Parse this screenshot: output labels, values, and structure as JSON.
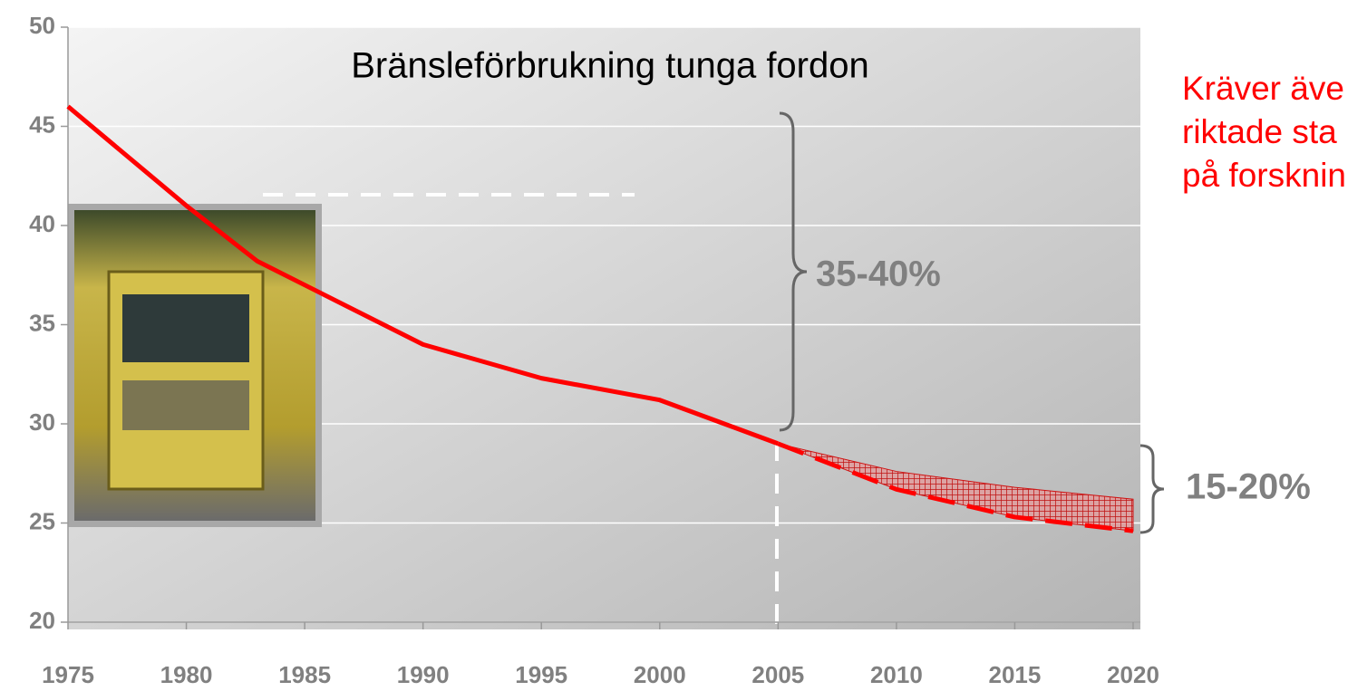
{
  "chart_data": {
    "type": "line",
    "title": "Bränsleförbrukning tunga fordon",
    "x": [
      1975,
      1980,
      1983,
      1985,
      1990,
      1995,
      2000,
      2005,
      2010,
      2015,
      2020
    ],
    "series": [
      {
        "color": "#ff0000",
        "style": "solid",
        "values": [
          46,
          41,
          38.2,
          37,
          34,
          32.3,
          31.2,
          29,
          null,
          null,
          null
        ]
      },
      {
        "color": "#ff0000",
        "style": "dashed",
        "values": [
          null,
          null,
          null,
          null,
          null,
          null,
          null,
          29,
          26.7,
          25.3,
          24.6
        ]
      },
      {
        "color": "#d00000",
        "style": "band",
        "values": [
          null,
          null,
          null,
          null,
          null,
          null,
          null,
          29,
          27.6,
          26.8,
          26.2
        ]
      }
    ],
    "xlim": [
      1975,
      2020
    ],
    "xticks": [
      1975,
      1980,
      1985,
      1990,
      1995,
      2000,
      2005,
      2010,
      2015,
      2020
    ],
    "ylim": [
      20,
      50
    ],
    "yticks": [
      20,
      25,
      30,
      35,
      40,
      45,
      50
    ],
    "grid": true,
    "annotations": [
      "35-40%",
      "15-20%"
    ],
    "note_lines": [
      "Kräver äve",
      "riktade sta",
      "på forsknin"
    ]
  }
}
